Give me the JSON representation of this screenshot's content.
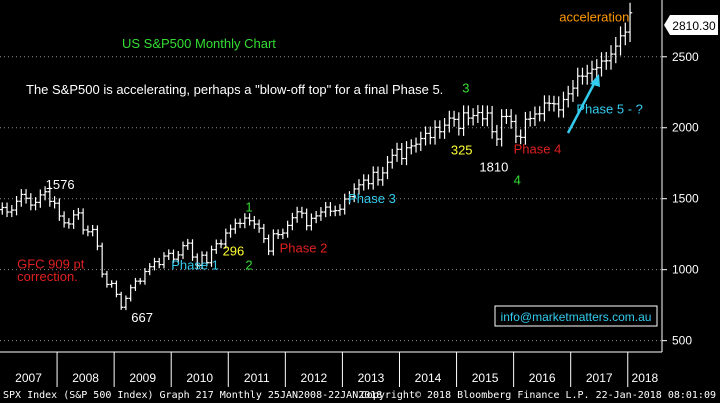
{
  "chart_data": {
    "type": "ohlc",
    "title": "US S&P500 Monthly Chart",
    "subtitle": "The S&P500 is accelerating, perhaps a \"blow-off top\" for a final Phase 5.",
    "ylim": [
      420,
      2900
    ],
    "xlim": [
      2007.0,
      2018.6
    ],
    "y_ticks": [
      500,
      1000,
      1500,
      2000,
      2500
    ],
    "x_ticks": [
      "2007",
      "2008",
      "2009",
      "2010",
      "2011",
      "2012",
      "2013",
      "2014",
      "2015",
      "2016",
      "2017",
      "2018"
    ],
    "last_price": "2810.30",
    "grid": "horizontal dotted",
    "colors": {
      "background": "#000000",
      "bars": "#ffffff",
      "cyan": "#33ccee",
      "red": "#e02020",
      "yellow": "#ffff33",
      "green": "#33dd33",
      "orange": "#ff9900",
      "axis": "#ffffff"
    },
    "monthly_close": [
      1438,
      1406,
      1420,
      1482,
      1530,
      1503,
      1455,
      1474,
      1527,
      1549,
      1481,
      1468,
      1378,
      1330,
      1322,
      1386,
      1400,
      1280,
      1267,
      1283,
      1166,
      969,
      896,
      903,
      826,
      735,
      798,
      873,
      919,
      919,
      987,
      1021,
      1057,
      1036,
      1096,
      1115,
      1074,
      1104,
      1169,
      1187,
      1089,
      1031,
      1102,
      1049,
      1141,
      1183,
      1181,
      1258,
      1286,
      1327,
      1326,
      1364,
      1345,
      1321,
      1292,
      1219,
      1131,
      1253,
      1247,
      1258,
      1312,
      1366,
      1408,
      1398,
      1310,
      1362,
      1379,
      1406,
      1441,
      1412,
      1416,
      1426,
      1498,
      1515,
      1569,
      1598,
      1631,
      1606,
      1686,
      1633,
      1682,
      1757,
      1806,
      1848,
      1783,
      1859,
      1872,
      1884,
      1924,
      1960,
      1931,
      2003,
      1972,
      2018,
      2068,
      2059,
      1995,
      2105,
      2068,
      2086,
      2107,
      2063,
      2104,
      1972,
      1920,
      2079,
      2080,
      2044,
      1940,
      1932,
      2060,
      2065,
      2097,
      2099,
      2174,
      2171,
      2168,
      2126,
      2199,
      2239,
      2279,
      2364,
      2363,
      2384,
      2412,
      2423,
      2470,
      2472,
      2519,
      2575,
      2648,
      2674,
      2810
    ],
    "annotations": [
      {
        "text": "1576",
        "color": "white",
        "x": 2007.8,
        "y": 1570
      },
      {
        "text": "GFC 909 pt",
        "color": "red",
        "x": 2007.3,
        "y": 1010
      },
      {
        "text": "correction.",
        "color": "red",
        "x": 2007.3,
        "y": 920
      },
      {
        "text": "667",
        "color": "white",
        "x": 2009.3,
        "y": 630
      },
      {
        "text": "Phase 1",
        "color": "cyan",
        "x": 2010.0,
        "y": 1000
      },
      {
        "text": "296",
        "color": "yellow",
        "x": 2010.9,
        "y": 1100
      },
      {
        "text": "1",
        "color": "green",
        "x": 2011.3,
        "y": 1410
      },
      {
        "text": "2",
        "color": "green",
        "x": 2011.3,
        "y": 1000
      },
      {
        "text": "Phase 2",
        "color": "red",
        "x": 2011.9,
        "y": 1120
      },
      {
        "text": "Phase 3",
        "color": "cyan",
        "x": 2013.1,
        "y": 1470
      },
      {
        "text": "325",
        "color": "yellow",
        "x": 2014.9,
        "y": 1810
      },
      {
        "text": "3",
        "color": "green",
        "x": 2015.1,
        "y": 2250
      },
      {
        "text": "Phase 4",
        "color": "red",
        "x": 2016.0,
        "y": 1820
      },
      {
        "text": "1810",
        "color": "white",
        "x": 2015.4,
        "y": 1690
      },
      {
        "text": "4",
        "color": "green",
        "x": 2016.0,
        "y": 1600
      },
      {
        "text": "Phase 5 - ?",
        "color": "cyan",
        "x": 2017.1,
        "y": 2100
      },
      {
        "text": "acceleration",
        "color": "orange",
        "x": 2016.8,
        "y": 2750
      }
    ],
    "watermark": "info@marketmatters.com.au"
  },
  "footer": {
    "left": "SPX Index (S&P 500 Index) Graph 217  Monthly 25JAN2008-22JAN2018",
    "right": "Copyright© 2018 Bloomberg Finance L.P.   22-Jan-2018 08:01:09"
  }
}
